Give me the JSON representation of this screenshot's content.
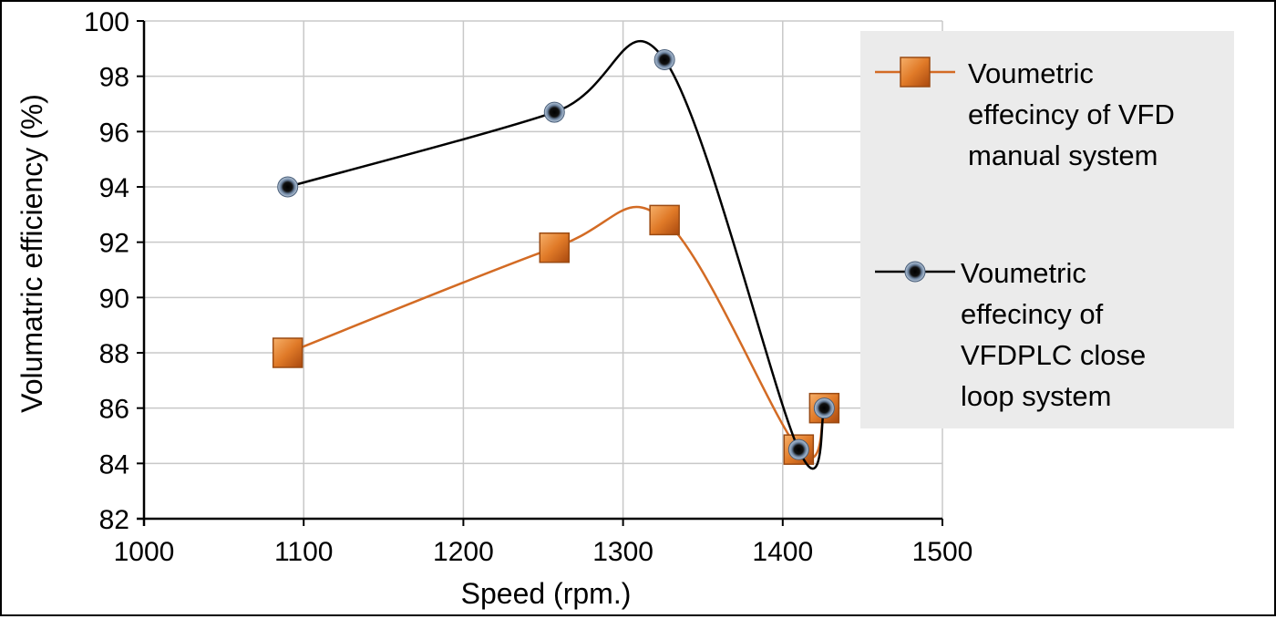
{
  "chart_data": {
    "type": "scatter",
    "xlabel": "Speed (rpm.)",
    "ylabel": "Volumatric efficiency (%)",
    "xlim": [
      1000,
      1500
    ],
    "ylim": [
      82,
      100
    ],
    "x_ticks": [
      "1000",
      "1100",
      "1200",
      "1300",
      "1400",
      "1500"
    ],
    "y_ticks": [
      "82",
      "84",
      "86",
      "88",
      "90",
      "92",
      "94",
      "96",
      "98",
      "100"
    ],
    "grid": true,
    "smoothed_lines": true,
    "legend_position": "right",
    "series": [
      {
        "name": "Voumetric effecincy of VFD manual system",
        "legend_lines": [
          "Voumetric",
          "effecincy of VFD",
          "manual system"
        ],
        "color": "#d36b24",
        "marker": "square",
        "points": [
          [
            1090,
            88.0
          ],
          [
            1257,
            91.8
          ],
          [
            1326,
            92.8
          ],
          [
            1410,
            84.5
          ],
          [
            1426,
            86.0
          ]
        ]
      },
      {
        "name": "Voumetric effecincy of VFDPLC close loop system",
        "legend_lines": [
          "Voumetric",
          "effecincy of",
          "VFDPLC close",
          "loop system"
        ],
        "color": "#000000",
        "marker": "circle",
        "points": [
          [
            1090,
            94.0
          ],
          [
            1257,
            96.7
          ],
          [
            1326,
            98.6
          ],
          [
            1410,
            84.5
          ],
          [
            1426,
            86.0
          ]
        ]
      }
    ]
  }
}
